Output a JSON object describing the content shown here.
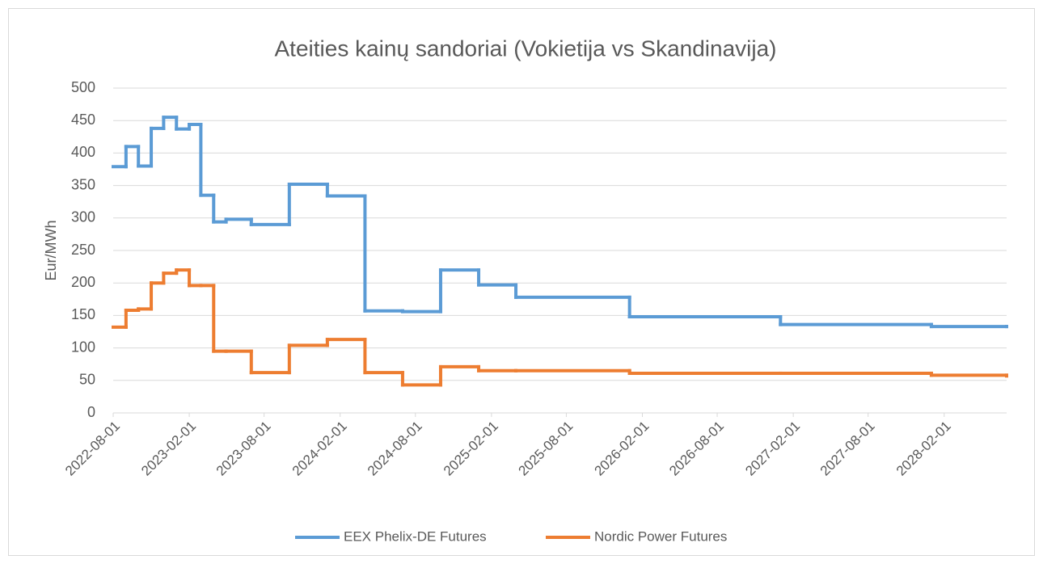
{
  "chart_data": {
    "type": "step-line",
    "title": "Ateities kainų sandoriai (Vokietija vs Skandinavija)",
    "y_label": "Eur/MWh",
    "x": [
      "2022-08-01",
      "2022-09-01",
      "2022-10-01",
      "2022-11-01",
      "2022-12-01",
      "2023-01-01",
      "2023-02-01",
      "2023-03-01",
      "2023-04-01",
      "2023-05-01",
      "2023-07-01",
      "2023-10-01",
      "2024-01-01",
      "2024-04-01",
      "2024-07-01",
      "2024-10-01",
      "2025-01-01",
      "2025-04-01",
      "2026-01-01",
      "2027-01-01",
      "2028-01-01",
      "2028-07-01"
    ],
    "series": [
      {
        "name": "EEX Phelix-DE Futures",
        "color": "#5b9bd5",
        "values": [
          379,
          410,
          380,
          438,
          455,
          437,
          444,
          335,
          294,
          298,
          290,
          352,
          334,
          157,
          156,
          220,
          197,
          178,
          148,
          136,
          133,
          133
        ]
      },
      {
        "name": "Nordic Power Futures",
        "color": "#ed7d31",
        "values": [
          132,
          158,
          160,
          200,
          215,
          220,
          196,
          196,
          95,
          95,
          62,
          104,
          113,
          62,
          43,
          71,
          65,
          65,
          61,
          61,
          58,
          57
        ]
      }
    ],
    "xlim": [
      "2022-08-01",
      "2028-07-01"
    ],
    "xticks": [
      "2022-08-01",
      "2023-02-01",
      "2023-08-01",
      "2024-02-01",
      "2024-08-01",
      "2025-02-01",
      "2025-08-01",
      "2026-02-01",
      "2026-08-01",
      "2027-02-01",
      "2027-08-01",
      "2028-02-01"
    ],
    "ylim": [
      0,
      500
    ],
    "yticks": [
      0,
      50,
      100,
      150,
      200,
      250,
      300,
      350,
      400,
      450,
      500
    ],
    "grid": true,
    "legend": "bottom"
  }
}
